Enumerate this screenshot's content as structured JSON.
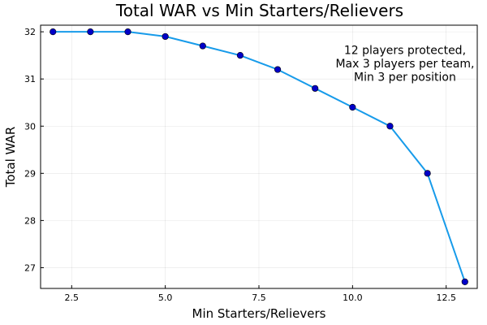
{
  "chart_data": {
    "type": "line",
    "title": "Total WAR vs Min Starters/Relievers",
    "xlabel": "Min Starters/Relievers",
    "ylabel": "Total WAR",
    "x": [
      2,
      3,
      4,
      5,
      6,
      7,
      8,
      9,
      10,
      11,
      12,
      13
    ],
    "series": [
      {
        "values": [
          32.0,
          32.0,
          32.0,
          31.9,
          31.7,
          31.5,
          31.2,
          30.8,
          30.4,
          30.0,
          29.0,
          26.7
        ],
        "line_color": "#179bea",
        "marker_color": "#0000c8"
      }
    ],
    "xlim": [
      1.67,
      13.33
    ],
    "ylim": [
      26.56,
      32.14
    ],
    "xticks": [
      2.5,
      5.0,
      7.5,
      10.0,
      12.5
    ],
    "xtick_labels": [
      "2.5",
      "5.0",
      "7.5",
      "10.0",
      "12.5"
    ],
    "yticks": [
      27,
      28,
      29,
      30,
      31,
      32
    ],
    "ytick_labels": [
      "27",
      "28",
      "29",
      "30",
      "31",
      "32"
    ],
    "grid": true,
    "legend": "none",
    "annotation": {
      "lines": [
        "12 players protected,",
        "Max 3 players per team,",
        "Min 3 per position"
      ],
      "x": 11.4,
      "y": 31.33
    }
  }
}
